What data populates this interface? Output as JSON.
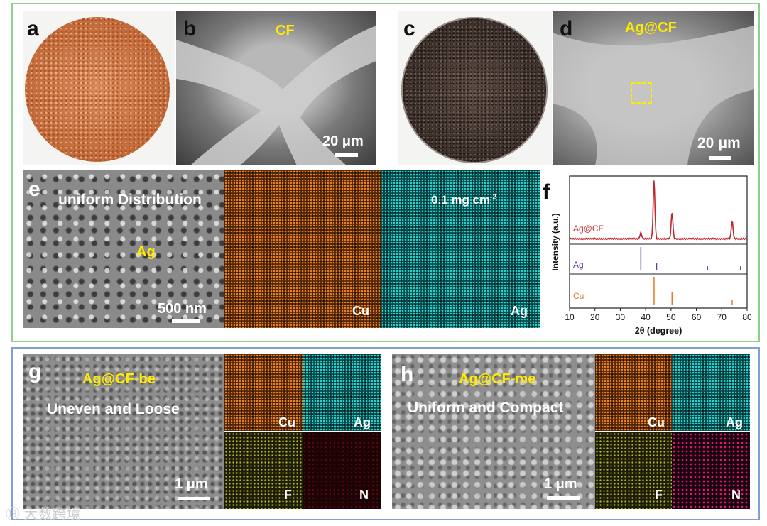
{
  "panels": {
    "a": {
      "label": "a"
    },
    "b": {
      "label": "b",
      "caption": "CF",
      "scale": "20 μm"
    },
    "c": {
      "label": "c"
    },
    "d": {
      "label": "d",
      "caption": "Ag@CF",
      "scale": "20 μm"
    },
    "e": {
      "label": "e",
      "title": "uniform Distribution",
      "caption": "Ag",
      "scale": "500 nm",
      "map_cu": "Cu",
      "map_ag": "Ag",
      "loading": "0.1 mg cm",
      "loading_sup": "-2"
    },
    "f": {
      "label": "f"
    },
    "g": {
      "label": "g",
      "caption": "Ag@CF-be",
      "title": "Uneven and Loose",
      "scale": "1 μm",
      "maps": [
        "Cu",
        "Ag",
        "F",
        "N"
      ]
    },
    "h": {
      "label": "h",
      "caption": "Ag@CF-me",
      "title": "Uniform and Compact",
      "scale": "1 μm",
      "maps": [
        "Cu",
        "Ag",
        "F",
        "N"
      ]
    }
  },
  "colors": {
    "ag_cf": "#c0282d",
    "ag": "#6a3d9a",
    "cu": "#e87722",
    "caption": "#ffeb00",
    "frame_top": "#8fd08f",
    "frame_bottom": "#7f9fd6"
  },
  "chart_data": {
    "type": "line",
    "title": "",
    "xlabel": "2θ (degree)",
    "ylabel": "Intensity (a.u.)",
    "xlim": [
      10,
      80
    ],
    "xticks": [
      10,
      20,
      30,
      40,
      50,
      60,
      70,
      80
    ],
    "series": [
      {
        "name": "Ag@CF",
        "type": "line",
        "peaks": [
          {
            "x": 38.1,
            "y": 0.1
          },
          {
            "x": 43.3,
            "y": 1.0
          },
          {
            "x": 50.4,
            "y": 0.46
          },
          {
            "x": 74.1,
            "y": 0.3
          }
        ]
      },
      {
        "name": "Ag",
        "type": "reference",
        "peaks": [
          {
            "x": 38.1,
            "y": 1.0
          },
          {
            "x": 44.3,
            "y": 0.3
          },
          {
            "x": 64.4,
            "y": 0.15
          },
          {
            "x": 77.4,
            "y": 0.15
          }
        ]
      },
      {
        "name": "Cu",
        "type": "reference",
        "peaks": [
          {
            "x": 43.3,
            "y": 1.0
          },
          {
            "x": 50.4,
            "y": 0.45
          },
          {
            "x": 74.1,
            "y": 0.2
          }
        ]
      }
    ]
  },
  "watermark": "⑬ 大数跨境"
}
